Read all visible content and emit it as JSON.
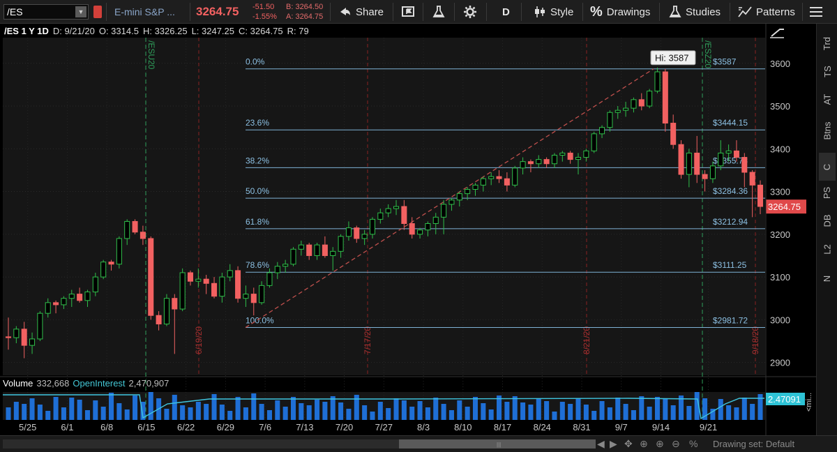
{
  "toolbar": {
    "symbol": "/ES",
    "instrument_name": "E-mini S&P ...",
    "last_price": "3264.75",
    "net_change": "-51.50",
    "pct_change": "-1.55%",
    "bid": "B: 3264.50",
    "ask": "A: 3264.75",
    "share_label": "Share",
    "aggregation": "D",
    "style_label": "Style",
    "drawings_label": "Drawings",
    "studies_label": "Studies",
    "patterns_label": "Patterns"
  },
  "chart_header": {
    "title": "/ES 1 Y 1D",
    "date": "D: 9/21/20",
    "open": "O: 3314.5",
    "high": "H: 3326.25",
    "low": "L: 3247.25",
    "close": "C: 3264.75",
    "range": "R: 79"
  },
  "side_tabs": [
    "Trd",
    "TS",
    "AT",
    "Btns",
    "C",
    "PS",
    "DB",
    "L2",
    "N"
  ],
  "volume_header": {
    "label": "Volume",
    "value": "332,668",
    "oi_label": "OpenInterest",
    "oi_value": "2,470,907"
  },
  "bottom": {
    "drawing_set": "Drawing set: Default"
  },
  "chart_data": {
    "type": "candlestick",
    "price_axis_ticks": [
      "2900",
      "3000",
      "3100",
      "3200",
      "3300",
      "3400",
      "3500",
      "3600"
    ],
    "date_axis_ticks": [
      "5/25",
      "6/1",
      "6/8",
      "6/15",
      "6/22",
      "6/29",
      "7/6",
      "7/13",
      "7/20",
      "7/27",
      "8/3",
      "8/10",
      "8/17",
      "8/24",
      "8/31",
      "9/7",
      "9/14",
      "9/21"
    ],
    "ylim": [
      2870,
      3660
    ],
    "current_price_label": "3264.75",
    "hi_tooltip": "Hi: 3587",
    "oi_value_label": "2.47091",
    "oi_axis_label": "<mi...",
    "expiry_markers": [
      "/ESU20",
      "/ESZ20"
    ],
    "event_markers": [
      "6/19/20",
      "7/17/20",
      "8/21/20",
      "9/18/20"
    ],
    "fibonacci": [
      {
        "level": "0.0%",
        "price": "$3587",
        "value": 3587
      },
      {
        "level": "23.6%",
        "price": "$3444.15",
        "value": 3444.15
      },
      {
        "level": "38.2%",
        "price": "$3355.78",
        "value": 3355.78
      },
      {
        "level": "50.0%",
        "price": "$3284.36",
        "value": 3284.36
      },
      {
        "level": "61.8%",
        "price": "$3212.94",
        "value": 3212.94
      },
      {
        "level": "78.6%",
        "price": "$3111.25",
        "value": 3111.25
      },
      {
        "level": "100.0%",
        "price": "$2981.72",
        "value": 2981.72
      }
    ],
    "candles": [
      [
        2960,
        3005,
        2930,
        2958
      ],
      [
        2958,
        2985,
        2945,
        2978
      ],
      [
        2978,
        2995,
        2910,
        2940
      ],
      [
        2940,
        2970,
        2920,
        2955
      ],
      [
        2955,
        3020,
        2950,
        3015
      ],
      [
        3015,
        3050,
        3005,
        3040
      ],
      [
        3040,
        3045,
        3015,
        3035
      ],
      [
        3035,
        3055,
        3025,
        3050
      ],
      [
        3050,
        3070,
        3030,
        3060
      ],
      [
        3060,
        3075,
        3040,
        3045
      ],
      [
        3045,
        3070,
        3030,
        3065
      ],
      [
        3065,
        3110,
        3055,
        3100
      ],
      [
        3100,
        3140,
        3095,
        3135
      ],
      [
        3135,
        3140,
        3115,
        3130
      ],
      [
        3130,
        3195,
        3120,
        3190
      ],
      [
        3190,
        3235,
        3175,
        3230
      ],
      [
        3230,
        3235,
        3200,
        3205
      ],
      [
        3205,
        3220,
        3175,
        3190
      ],
      [
        3190,
        3195,
        3000,
        3010
      ],
      [
        3010,
        3020,
        2975,
        2990
      ],
      [
        2990,
        3060,
        2985,
        3050
      ],
      [
        3050,
        3060,
        2920,
        3025
      ],
      [
        3025,
        3120,
        3020,
        3110
      ],
      [
        3110,
        3115,
        3080,
        3090
      ],
      [
        3090,
        3120,
        3075,
        3095
      ],
      [
        3095,
        3105,
        3060,
        3085
      ],
      [
        3085,
        3100,
        3050,
        3055
      ],
      [
        3055,
        3110,
        3040,
        3100
      ],
      [
        3100,
        3130,
        3090,
        3115
      ],
      [
        3115,
        3125,
        3040,
        3050
      ],
      [
        3050,
        3080,
        3030,
        3060
      ],
      [
        3060,
        3075,
        3010,
        3040
      ],
      [
        3040,
        3090,
        3035,
        3080
      ],
      [
        3080,
        3120,
        3075,
        3110
      ],
      [
        3110,
        3135,
        3095,
        3125
      ],
      [
        3125,
        3140,
        3110,
        3130
      ],
      [
        3130,
        3170,
        3125,
        3165
      ],
      [
        3165,
        3185,
        3150,
        3175
      ],
      [
        3175,
        3180,
        3140,
        3150
      ],
      [
        3150,
        3180,
        3140,
        3175
      ],
      [
        3175,
        3195,
        3145,
        3150
      ],
      [
        3150,
        3170,
        3115,
        3160
      ],
      [
        3160,
        3200,
        3145,
        3195
      ],
      [
        3195,
        3230,
        3185,
        3215
      ],
      [
        3215,
        3220,
        3180,
        3190
      ],
      [
        3190,
        3210,
        3175,
        3200
      ],
      [
        3200,
        3240,
        3190,
        3235
      ],
      [
        3235,
        3260,
        3225,
        3250
      ],
      [
        3250,
        3270,
        3240,
        3260
      ],
      [
        3260,
        3280,
        3245,
        3265
      ],
      [
        3265,
        3280,
        3210,
        3225
      ],
      [
        3225,
        3240,
        3190,
        3200
      ],
      [
        3200,
        3215,
        3190,
        3210
      ],
      [
        3210,
        3230,
        3195,
        3225
      ],
      [
        3225,
        3250,
        3200,
        3240
      ],
      [
        3240,
        3280,
        3200,
        3270
      ],
      [
        3270,
        3285,
        3255,
        3280
      ],
      [
        3280,
        3300,
        3265,
        3295
      ],
      [
        3295,
        3310,
        3280,
        3305
      ],
      [
        3305,
        3320,
        3290,
        3315
      ],
      [
        3315,
        3335,
        3300,
        3330
      ],
      [
        3330,
        3345,
        3315,
        3335
      ],
      [
        3335,
        3350,
        3320,
        3330
      ],
      [
        3330,
        3345,
        3300,
        3315
      ],
      [
        3315,
        3360,
        3310,
        3355
      ],
      [
        3355,
        3380,
        3340,
        3370
      ],
      [
        3370,
        3375,
        3345,
        3365
      ],
      [
        3365,
        3385,
        3355,
        3375
      ],
      [
        3375,
        3380,
        3355,
        3365
      ],
      [
        3365,
        3390,
        3355,
        3385
      ],
      [
        3385,
        3395,
        3370,
        3390
      ],
      [
        3390,
        3395,
        3365,
        3375
      ],
      [
        3375,
        3390,
        3340,
        3380
      ],
      [
        3380,
        3400,
        3370,
        3395
      ],
      [
        3395,
        3440,
        3390,
        3435
      ],
      [
        3435,
        3455,
        3425,
        3450
      ],
      [
        3450,
        3490,
        3440,
        3485
      ],
      [
        3485,
        3500,
        3470,
        3490
      ],
      [
        3490,
        3510,
        3475,
        3495
      ],
      [
        3495,
        3520,
        3485,
        3515
      ],
      [
        3515,
        3530,
        3490,
        3500
      ],
      [
        3500,
        3540,
        3495,
        3535
      ],
      [
        3535,
        3590,
        3530,
        3580
      ],
      [
        3580,
        3587,
        3440,
        3460
      ],
      [
        3460,
        3480,
        3400,
        3410
      ],
      [
        3410,
        3420,
        3330,
        3340
      ],
      [
        3340,
        3400,
        3310,
        3390
      ],
      [
        3390,
        3430,
        3320,
        3340
      ],
      [
        3340,
        3350,
        3300,
        3330
      ],
      [
        3330,
        3370,
        3320,
        3360
      ],
      [
        3360,
        3420,
        3350,
        3390
      ],
      [
        3390,
        3410,
        3370,
        3395
      ],
      [
        3395,
        3420,
        3370,
        3380
      ],
      [
        3380,
        3390,
        3310,
        3345
      ],
      [
        3345,
        3350,
        3240,
        3315
      ],
      [
        3315,
        3326,
        3247,
        3265
      ]
    ]
  }
}
